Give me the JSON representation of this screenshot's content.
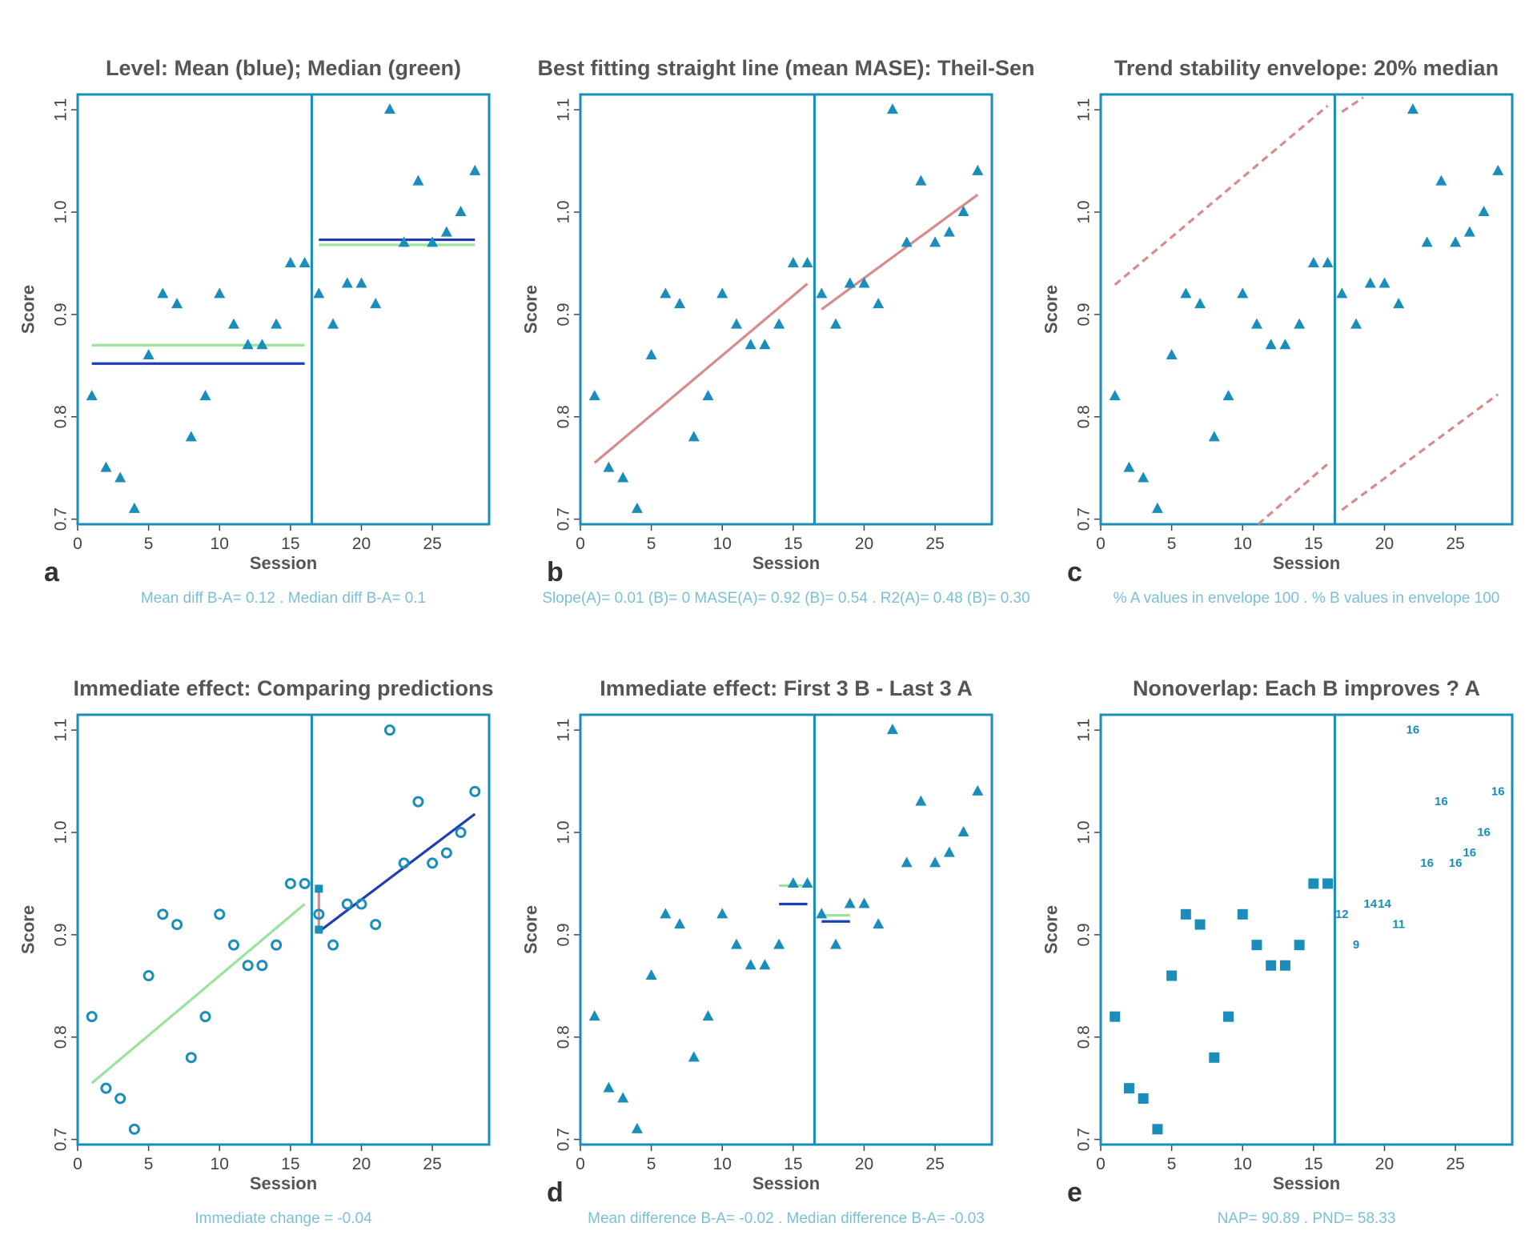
{
  "colors": {
    "frame": "#1a8dbb",
    "points": "#1a8dbb",
    "mean_line": "#1e3fb4",
    "median_line": "#9be29b",
    "trend_line": "#d88b8b",
    "caption": "#7bbfd6"
  },
  "chart_data": [
    {
      "id": "panel-a",
      "type": "scatter",
      "letter": "a",
      "title": "Level: Mean (blue); Median (green)",
      "xlabel": "Session",
      "ylabel": "Score",
      "caption": "Mean diff B-A= 0.12 . Median diff B-A= 0.1",
      "xlim": [
        0,
        29
      ],
      "ylim": [
        0.695,
        1.115
      ],
      "xticks": [
        0,
        5,
        10,
        15,
        20,
        25
      ],
      "yticks": [
        0.7,
        0.8,
        0.9,
        1.0,
        1.1
      ],
      "phase_change": 16.5,
      "marker": "triangle",
      "x": [
        1,
        2,
        3,
        4,
        5,
        6,
        7,
        8,
        9,
        10,
        11,
        12,
        13,
        14,
        15,
        16,
        17,
        18,
        19,
        20,
        21,
        22,
        23,
        24,
        25,
        26,
        27,
        28
      ],
      "y": [
        0.82,
        0.75,
        0.74,
        0.71,
        0.86,
        0.92,
        0.91,
        0.78,
        0.82,
        0.92,
        0.89,
        0.87,
        0.87,
        0.89,
        0.95,
        0.95,
        0.92,
        0.89,
        0.93,
        0.93,
        0.91,
        1.1,
        0.97,
        1.03,
        0.97,
        0.98,
        1.0,
        1.04
      ],
      "segments": [
        {
          "name": "median-A",
          "color": "median",
          "x": [
            1,
            16
          ],
          "y": [
            0.87,
            0.87
          ]
        },
        {
          "name": "mean-A",
          "color": "mean",
          "x": [
            1,
            16
          ],
          "y": [
            0.852,
            0.852
          ]
        },
        {
          "name": "median-B",
          "color": "median",
          "x": [
            17,
            28
          ],
          "y": [
            0.968,
            0.968
          ]
        },
        {
          "name": "mean-B",
          "color": "mean",
          "x": [
            17,
            28
          ],
          "y": [
            0.973,
            0.973
          ]
        }
      ]
    },
    {
      "id": "panel-b",
      "type": "scatter",
      "letter": "b",
      "title": "Best fitting straight line (mean MASE): Theil-Sen",
      "xlabel": "Session",
      "ylabel": "Score",
      "caption": "Slope(A)= 0.01 (B)= 0 MASE(A)= 0.92 (B)= 0.54 . R2(A)= 0.48 (B)= 0.30",
      "xlim": [
        0,
        29
      ],
      "ylim": [
        0.695,
        1.115
      ],
      "xticks": [
        0,
        5,
        10,
        15,
        20,
        25
      ],
      "yticks": [
        0.7,
        0.8,
        0.9,
        1.0,
        1.1
      ],
      "phase_change": 16.5,
      "marker": "triangle",
      "x": [
        1,
        2,
        3,
        4,
        5,
        6,
        7,
        8,
        9,
        10,
        11,
        12,
        13,
        14,
        15,
        16,
        17,
        18,
        19,
        20,
        21,
        22,
        23,
        24,
        25,
        26,
        27,
        28
      ],
      "y": [
        0.82,
        0.75,
        0.74,
        0.71,
        0.86,
        0.92,
        0.91,
        0.78,
        0.82,
        0.92,
        0.89,
        0.87,
        0.87,
        0.89,
        0.95,
        0.95,
        0.92,
        0.89,
        0.93,
        0.93,
        0.91,
        1.1,
        0.97,
        1.03,
        0.97,
        0.98,
        1.0,
        1.04
      ],
      "segments": [
        {
          "name": "trend-A",
          "color": "trend",
          "x": [
            1,
            16
          ],
          "y": [
            0.755,
            0.93
          ]
        },
        {
          "name": "trend-B",
          "color": "trend",
          "x": [
            17,
            28
          ],
          "y": [
            0.905,
            1.017
          ]
        }
      ]
    },
    {
      "id": "panel-c",
      "type": "scatter",
      "letter": "c",
      "title": "Trend stability envelope: 20% median",
      "xlabel": "Session",
      "ylabel": "Score",
      "caption": "% A values in envelope 100 . % B values in envelope 100",
      "xlim": [
        0,
        29
      ],
      "ylim": [
        0.695,
        1.115
      ],
      "xticks": [
        0,
        5,
        10,
        15,
        20,
        25
      ],
      "yticks": [
        0.7,
        0.8,
        0.9,
        1.0,
        1.1
      ],
      "phase_change": 16.5,
      "marker": "triangle",
      "x": [
        1,
        2,
        3,
        4,
        5,
        6,
        7,
        8,
        9,
        10,
        11,
        12,
        13,
        14,
        15,
        16,
        17,
        18,
        19,
        20,
        21,
        22,
        23,
        24,
        25,
        26,
        27,
        28
      ],
      "y": [
        0.82,
        0.75,
        0.74,
        0.71,
        0.86,
        0.92,
        0.91,
        0.78,
        0.82,
        0.92,
        0.89,
        0.87,
        0.87,
        0.89,
        0.95,
        0.95,
        0.92,
        0.89,
        0.93,
        0.93,
        0.91,
        1.1,
        0.97,
        1.03,
        0.97,
        0.98,
        1.0,
        1.04
      ],
      "segments": [
        {
          "name": "envelope-A-upper",
          "color": "trend",
          "dashed": true,
          "x": [
            1,
            16
          ],
          "y": [
            0.929,
            1.104
          ]
        },
        {
          "name": "envelope-A-lower",
          "color": "trend",
          "dashed": true,
          "x": [
            11.1,
            16
          ],
          "y": [
            0.695,
            0.754
          ]
        },
        {
          "name": "envelope-B-upper",
          "color": "trend",
          "dashed": true,
          "x": [
            17,
            18.5
          ],
          "y": [
            1.098,
            1.112
          ]
        },
        {
          "name": "envelope-B-lower",
          "color": "trend",
          "dashed": true,
          "x": [
            17,
            28
          ],
          "y": [
            0.709,
            0.822
          ]
        }
      ]
    },
    {
      "id": "panel-d",
      "type": "scatter",
      "letter": "",
      "title": "Immediate effect: Comparing predictions",
      "xlabel": "Session",
      "ylabel": "Score",
      "caption": "Immediate change = -0.04",
      "xlim": [
        0,
        29
      ],
      "ylim": [
        0.695,
        1.115
      ],
      "xticks": [
        0,
        5,
        10,
        15,
        20,
        25
      ],
      "yticks": [
        0.7,
        0.8,
        0.9,
        1.0,
        1.1
      ],
      "phase_change": 16.5,
      "marker": "circle",
      "x": [
        1,
        2,
        3,
        4,
        5,
        6,
        7,
        8,
        9,
        10,
        11,
        12,
        13,
        14,
        15,
        16,
        17,
        18,
        19,
        20,
        21,
        22,
        23,
        24,
        25,
        26,
        27,
        28
      ],
      "y": [
        0.82,
        0.75,
        0.74,
        0.71,
        0.86,
        0.92,
        0.91,
        0.78,
        0.82,
        0.92,
        0.89,
        0.87,
        0.87,
        0.89,
        0.95,
        0.95,
        0.92,
        0.89,
        0.93,
        0.93,
        0.91,
        1.1,
        0.97,
        1.03,
        0.97,
        0.98,
        1.0,
        1.04
      ],
      "segments": [
        {
          "name": "trend-A",
          "color": "median",
          "x": [
            1,
            16
          ],
          "y": [
            0.755,
            0.93
          ]
        },
        {
          "name": "trend-B",
          "color": "mean",
          "x": [
            17,
            28
          ],
          "y": [
            0.903,
            1.018
          ]
        },
        {
          "name": "immediate-change",
          "color": "trend",
          "x": [
            17,
            17
          ],
          "y": [
            0.945,
            0.905
          ]
        }
      ],
      "extra_markers": [
        {
          "name": "projected-A",
          "x": 17,
          "y": 0.945
        },
        {
          "name": "projected-B",
          "x": 17,
          "y": 0.905
        }
      ]
    },
    {
      "id": "panel-e",
      "type": "scatter",
      "letter": "d",
      "title": "Immediate effect: First 3 B - Last 3 A",
      "xlabel": "Session",
      "ylabel": "Score",
      "caption": "Mean difference B-A= -0.02 . Median difference B-A= -0.03",
      "xlim": [
        0,
        29
      ],
      "ylim": [
        0.695,
        1.115
      ],
      "xticks": [
        0,
        5,
        10,
        15,
        20,
        25
      ],
      "yticks": [
        0.7,
        0.8,
        0.9,
        1.0,
        1.1
      ],
      "phase_change": 16.5,
      "marker": "triangle",
      "x": [
        1,
        2,
        3,
        4,
        5,
        6,
        7,
        8,
        9,
        10,
        11,
        12,
        13,
        14,
        15,
        16,
        17,
        18,
        19,
        20,
        21,
        22,
        23,
        24,
        25,
        26,
        27,
        28
      ],
      "y": [
        0.82,
        0.75,
        0.74,
        0.71,
        0.86,
        0.92,
        0.91,
        0.78,
        0.82,
        0.92,
        0.89,
        0.87,
        0.87,
        0.89,
        0.95,
        0.95,
        0.92,
        0.89,
        0.93,
        0.93,
        0.91,
        1.1,
        0.97,
        1.03,
        0.97,
        0.98,
        1.0,
        1.04
      ],
      "segments": [
        {
          "name": "median-last3-A",
          "color": "median",
          "x": [
            14,
            16
          ],
          "y": [
            0.948,
            0.948
          ]
        },
        {
          "name": "mean-last3-A",
          "color": "mean",
          "x": [
            14,
            16
          ],
          "y": [
            0.93,
            0.93
          ]
        },
        {
          "name": "median-first3-B",
          "color": "median",
          "x": [
            17,
            19
          ],
          "y": [
            0.919,
            0.919
          ]
        },
        {
          "name": "mean-first3-B",
          "color": "mean",
          "x": [
            17,
            19
          ],
          "y": [
            0.913,
            0.913
          ]
        }
      ]
    },
    {
      "id": "panel-f",
      "type": "scatter",
      "letter": "e",
      "title": "Nonoverlap: Each B improves ? A",
      "xlabel": "Session",
      "ylabel": "Score",
      "caption": "NAP= 90.89 . PND= 58.33",
      "xlim": [
        0,
        29
      ],
      "ylim": [
        0.695,
        1.115
      ],
      "xticks": [
        0,
        5,
        10,
        15,
        20,
        25
      ],
      "yticks": [
        0.7,
        0.8,
        0.9,
        1.0,
        1.1
      ],
      "phase_change": 16.5,
      "marker": "square",
      "x": [
        1,
        2,
        3,
        4,
        5,
        6,
        7,
        8,
        9,
        10,
        11,
        12,
        13,
        14,
        15,
        16
      ],
      "y": [
        0.82,
        0.75,
        0.74,
        0.71,
        0.86,
        0.92,
        0.91,
        0.78,
        0.82,
        0.92,
        0.89,
        0.87,
        0.87,
        0.89,
        0.95,
        0.95
      ],
      "segments": [],
      "labels": [
        {
          "x": 17,
          "y": 0.92,
          "text": "12"
        },
        {
          "x": 18,
          "y": 0.89,
          "text": "9"
        },
        {
          "x": 19,
          "y": 0.93,
          "text": "14"
        },
        {
          "x": 20,
          "y": 0.93,
          "text": "14"
        },
        {
          "x": 21,
          "y": 0.91,
          "text": "11"
        },
        {
          "x": 22,
          "y": 1.1,
          "text": "16"
        },
        {
          "x": 23,
          "y": 0.97,
          "text": "16"
        },
        {
          "x": 24,
          "y": 1.03,
          "text": "16"
        },
        {
          "x": 25,
          "y": 0.97,
          "text": "16"
        },
        {
          "x": 26,
          "y": 0.98,
          "text": "16"
        },
        {
          "x": 27,
          "y": 1.0,
          "text": "16"
        },
        {
          "x": 28,
          "y": 1.04,
          "text": "16"
        }
      ]
    }
  ]
}
